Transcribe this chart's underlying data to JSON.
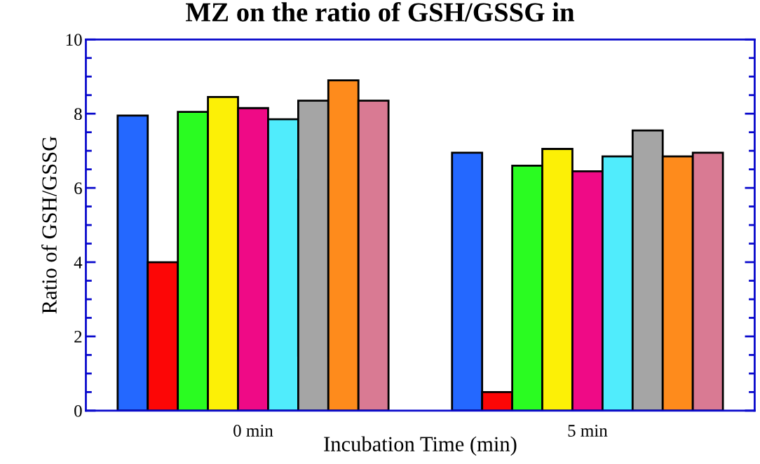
{
  "chart_data": {
    "type": "bar",
    "title": "MZ on the ratio of GSH/GSSG in",
    "xlabel": "Incubation Time (min)",
    "ylabel": "Ratio of GSH/GSSG",
    "categories": [
      "0 min",
      "5 min"
    ],
    "series": [
      {
        "color": "#2468ff",
        "values": [
          7.95,
          6.95
        ]
      },
      {
        "color": "#fc0606",
        "values": [
          4.0,
          0.5
        ]
      },
      {
        "color": "#2afc21",
        "values": [
          8.05,
          6.6
        ]
      },
      {
        "color": "#fcf006",
        "values": [
          8.45,
          7.05
        ]
      },
      {
        "color": "#ef0a86",
        "values": [
          8.15,
          6.45
        ]
      },
      {
        "color": "#50ecfc",
        "values": [
          7.85,
          6.85
        ]
      },
      {
        "color": "#a5a5a5",
        "values": [
          8.35,
          7.55
        ]
      },
      {
        "color": "#fe8b1c",
        "values": [
          8.9,
          6.85
        ]
      },
      {
        "color": "#d97a93",
        "values": [
          8.35,
          6.95
        ]
      }
    ],
    "ylim": [
      0,
      10
    ],
    "yticks": [
      0,
      2,
      4,
      6,
      8,
      10
    ],
    "grid": false
  }
}
